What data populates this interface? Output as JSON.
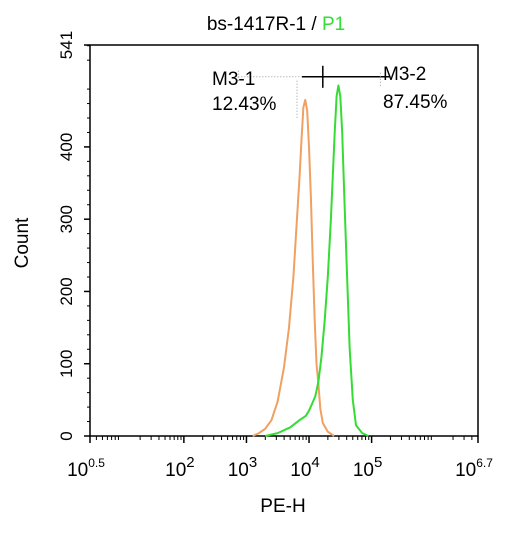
{
  "chart_data": {
    "type": "line",
    "title": {
      "sample": "bs-1417R-1",
      "separator": " / ",
      "gate": "P1"
    },
    "xlabel": "PE-H",
    "ylabel": "Count",
    "x_scale": "log10",
    "xlim_exp": [
      0.5,
      6.7
    ],
    "ylim": [
      0,
      541
    ],
    "x_ticks": [
      {
        "base": "10",
        "exp": "0.5",
        "value": 0.5
      },
      {
        "base": "10",
        "exp": "2",
        "value": 2
      },
      {
        "base": "10",
        "exp": "3",
        "value": 3
      },
      {
        "base": "10",
        "exp": "4",
        "value": 4
      },
      {
        "base": "10",
        "exp": "5",
        "value": 5
      },
      {
        "base": "10",
        "exp": "6.7",
        "value": 6.7
      }
    ],
    "y_ticks": [
      {
        "label": "0",
        "value": 0
      },
      {
        "label": "100",
        "value": 100
      },
      {
        "label": "200",
        "value": 200
      },
      {
        "label": "300",
        "value": 300
      },
      {
        "label": "400",
        "value": 400
      },
      {
        "label": "541",
        "value": 541
      }
    ],
    "series": [
      {
        "color": "#f0a060",
        "points": [
          [
            3.1,
            0
          ],
          [
            3.2,
            4
          ],
          [
            3.3,
            10
          ],
          [
            3.4,
            22
          ],
          [
            3.5,
            48
          ],
          [
            3.6,
            95
          ],
          [
            3.68,
            150
          ],
          [
            3.75,
            220
          ],
          [
            3.8,
            290
          ],
          [
            3.85,
            360
          ],
          [
            3.88,
            410
          ],
          [
            3.91,
            455
          ],
          [
            3.94,
            465
          ],
          [
            3.97,
            450
          ],
          [
            4.0,
            400
          ],
          [
            4.03,
            330
          ],
          [
            4.06,
            240
          ],
          [
            4.09,
            160
          ],
          [
            4.12,
            100
          ],
          [
            4.15,
            72
          ],
          [
            4.18,
            38
          ],
          [
            4.22,
            18
          ],
          [
            4.3,
            6
          ],
          [
            4.4,
            0
          ]
        ]
      },
      {
        "color": "#33dd33",
        "points": [
          [
            3.3,
            0
          ],
          [
            3.5,
            4
          ],
          [
            3.7,
            12
          ],
          [
            3.85,
            22
          ],
          [
            3.95,
            28
          ],
          [
            4.0,
            35
          ],
          [
            4.05,
            45
          ],
          [
            4.1,
            55
          ],
          [
            4.15,
            75
          ],
          [
            4.2,
            110
          ],
          [
            4.25,
            160
          ],
          [
            4.3,
            220
          ],
          [
            4.35,
            300
          ],
          [
            4.38,
            360
          ],
          [
            4.41,
            420
          ],
          [
            4.44,
            470
          ],
          [
            4.47,
            485
          ],
          [
            4.5,
            470
          ],
          [
            4.53,
            420
          ],
          [
            4.56,
            340
          ],
          [
            4.6,
            240
          ],
          [
            4.65,
            120
          ],
          [
            4.7,
            50
          ],
          [
            4.75,
            15
          ],
          [
            4.85,
            4
          ],
          [
            4.95,
            0
          ]
        ]
      }
    ],
    "markers": [
      {
        "name": "M3-1",
        "percent": "12.43%",
        "x_range": [
          2.87,
          4.22
        ]
      },
      {
        "name": "M3-2",
        "percent": "87.45%",
        "x_range": [
          4.22,
          5.3
        ]
      }
    ],
    "marker_y": 497,
    "colors": {
      "axis": "#000000",
      "gate_label": "#33dd33",
      "marker_dotted": "#999999"
    }
  }
}
